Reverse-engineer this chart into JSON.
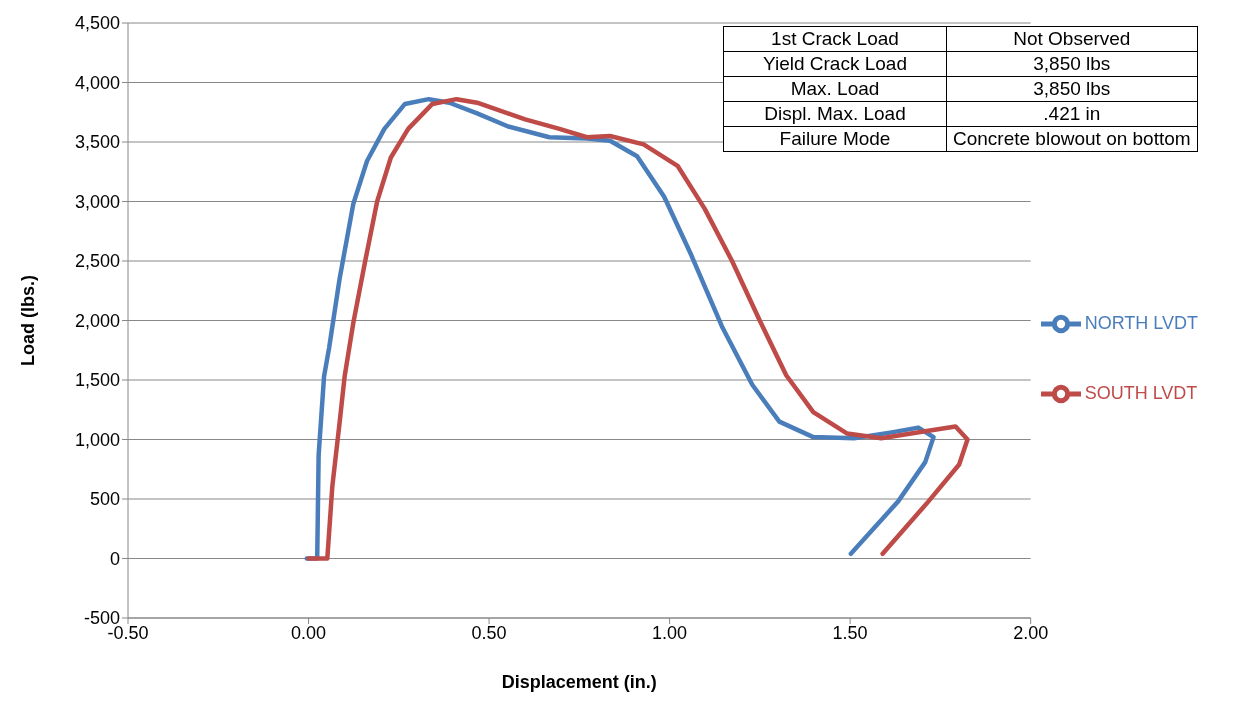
{
  "chart_data": {
    "type": "line",
    "xlabel": "Displacement (in.)",
    "ylabel": "Load  (lbs.)",
    "xlim": [
      -0.5,
      2.0
    ],
    "xticks": [
      {
        "value": -0.5,
        "label": "-0.50"
      },
      {
        "value": 0,
        "label": "0.00"
      },
      {
        "value": 0.5,
        "label": "0.50"
      },
      {
        "value": 1,
        "label": "1.00"
      },
      {
        "value": 1.5,
        "label": "1.50"
      },
      {
        "value": 2,
        "label": "2.00"
      }
    ],
    "ylim": [
      -500,
      4500
    ],
    "yticks": [
      -500,
      0,
      500,
      {
        "value": 1000,
        "label": "1,000"
      },
      {
        "value": 1500,
        "label": "1,500"
      },
      {
        "value": 2000,
        "label": "2,000"
      },
      {
        "value": 2500,
        "label": "2,500"
      },
      {
        "value": 3000,
        "label": "3,000"
      },
      {
        "value": 3500,
        "label": "3,500"
      },
      {
        "value": 4000,
        "label": "4,000"
      },
      {
        "value": 4500,
        "label": "4,500"
      }
    ],
    "grid": "y",
    "legend": "right",
    "marker": "none",
    "line_style": "solid",
    "series": [
      {
        "name": "NORTH LVDT",
        "color": "#4a7ebb",
        "x": [
          -0.005,
          0.024,
          0.028,
          0.043,
          0.057,
          0.086,
          0.124,
          0.162,
          0.21,
          0.267,
          0.333,
          0.39,
          0.467,
          0.553,
          0.667,
          0.771,
          0.835,
          0.91,
          0.985,
          1.06,
          1.145,
          1.229,
          1.304,
          1.398,
          1.511,
          1.615,
          1.689,
          1.731,
          1.708,
          1.633,
          1.502
        ],
        "values": [
          0,
          0,
          870,
          1530,
          1770,
          2350,
          2980,
          3340,
          3610,
          3820,
          3860,
          3830,
          3740,
          3630,
          3540,
          3530,
          3510,
          3380,
          3040,
          2550,
          1950,
          1460,
          1150,
          1020,
          1010,
          1060,
          1100,
          1020,
          810,
          480,
          40
        ]
      },
      {
        "name": "SOUTH LVDT",
        "color": "#be4b48",
        "x": [
          0,
          0.052,
          0.066,
          0.086,
          0.1,
          0.124,
          0.157,
          0.19,
          0.228,
          0.276,
          0.343,
          0.41,
          0.467,
          0.6,
          0.695,
          0.771,
          0.835,
          0.928,
          1.022,
          1.097,
          1.173,
          1.248,
          1.323,
          1.398,
          1.492,
          1.586,
          1.708,
          1.792,
          1.825,
          1.802,
          1.717,
          1.59
        ],
        "values": [
          0,
          0,
          610,
          1140,
          1530,
          1980,
          2500,
          3000,
          3370,
          3610,
          3820,
          3860,
          3830,
          3690,
          3610,
          3540,
          3550,
          3480,
          3300,
          2940,
          2500,
          2010,
          1540,
          1230,
          1050,
          1010,
          1070,
          1110,
          1000,
          790,
          480,
          40
        ]
      }
    ],
    "annotations": [
      "1st Crack Load",
      "Not Observed",
      "Yield Crack Load",
      "3,850 lbs",
      "Max. Load",
      "3,850 lbs",
      "Displ. Max. Load",
      ".421 in",
      "Failure Mode",
      "Concrete blowout on bottom"
    ]
  }
}
